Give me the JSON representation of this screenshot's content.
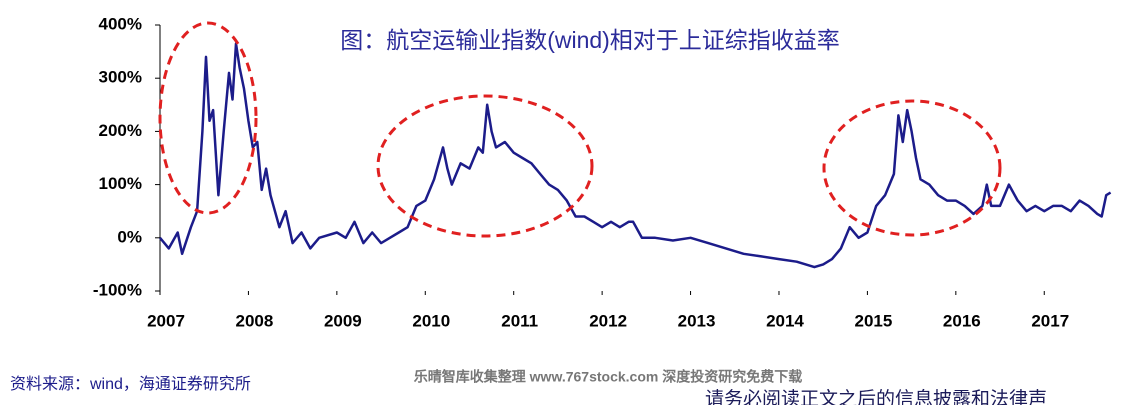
{
  "chart_data": {
    "type": "line",
    "title": "图：航空运输业指数(wind)相对于上证综指收益率",
    "source": "资料来源：wind，海通证券研究所",
    "watermark": "乐晴智库收集整理 www.767stock.com 深度投资研究免费下载",
    "footer": "请务必阅读正文之后的信息披露和法律声",
    "x": [
      2007.0,
      2007.1,
      2007.2,
      2007.25,
      2007.35,
      2007.42,
      2007.48,
      2007.52,
      2007.56,
      2007.6,
      2007.66,
      2007.72,
      2007.78,
      2007.82,
      2007.86,
      2007.9,
      2007.95,
      2008.0,
      2008.05,
      2008.1,
      2008.15,
      2008.2,
      2008.25,
      2008.35,
      2008.42,
      2008.5,
      2008.6,
      2008.7,
      2008.8,
      2009.0,
      2009.1,
      2009.2,
      2009.3,
      2009.4,
      2009.5,
      2009.6,
      2009.7,
      2009.8,
      2009.9,
      2010.0,
      2010.1,
      2010.2,
      2010.25,
      2010.3,
      2010.4,
      2010.5,
      2010.6,
      2010.65,
      2010.7,
      2010.75,
      2010.8,
      2010.9,
      2011.0,
      2011.1,
      2011.2,
      2011.3,
      2011.4,
      2011.5,
      2011.6,
      2011.7,
      2011.8,
      2011.9,
      2012.0,
      2012.1,
      2012.2,
      2012.3,
      2012.35,
      2012.45,
      2012.6,
      2012.8,
      2013.0,
      2013.2,
      2013.4,
      2013.6,
      2013.8,
      2014.0,
      2014.2,
      2014.4,
      2014.5,
      2014.6,
      2014.7,
      2014.8,
      2014.9,
      2015.0,
      2015.1,
      2015.2,
      2015.3,
      2015.35,
      2015.4,
      2015.45,
      2015.5,
      2015.55,
      2015.6,
      2015.7,
      2015.8,
      2015.9,
      2016.0,
      2016.1,
      2016.2,
      2016.3,
      2016.35,
      2016.4,
      2016.5,
      2016.6,
      2016.7,
      2016.8,
      2016.9,
      2017.0,
      2017.1,
      2017.2,
      2017.3,
      2017.4,
      2017.5,
      2017.6,
      2017.65,
      2017.7,
      2017.75
    ],
    "series": [
      {
        "color": "#1c1c8a",
        "values": [
          0,
          -20,
          10,
          -30,
          20,
          50,
          200,
          340,
          220,
          240,
          80,
          200,
          310,
          260,
          365,
          320,
          280,
          220,
          170,
          180,
          90,
          130,
          80,
          20,
          50,
          -10,
          10,
          -20,
          0,
          10,
          0,
          30,
          -10,
          10,
          -10,
          0,
          10,
          20,
          60,
          70,
          110,
          170,
          130,
          100,
          140,
          130,
          170,
          160,
          250,
          200,
          170,
          180,
          160,
          150,
          140,
          120,
          100,
          90,
          70,
          40,
          40,
          30,
          20,
          30,
          20,
          30,
          30,
          0,
          0,
          -5,
          0,
          -10,
          -20,
          -30,
          -35,
          -40,
          -45,
          -55,
          -50,
          -40,
          -20,
          20,
          0,
          10,
          60,
          80,
          120,
          230,
          180,
          240,
          200,
          150,
          110,
          100,
          80,
          70,
          70,
          60,
          45,
          60,
          100,
          60,
          60,
          100,
          70,
          50,
          60,
          50,
          60,
          60,
          50,
          70,
          60,
          45,
          40,
          80,
          85
        ]
      }
    ],
    "xlim": [
      2007,
      2017.8
    ],
    "xticks": [
      2007,
      2008,
      2009,
      2010,
      2011,
      2012,
      2013,
      2014,
      2015,
      2016,
      2017
    ],
    "ylim": [
      -100,
      400
    ],
    "yticks": [
      {
        "value": -100,
        "label": "-100%"
      },
      {
        "value": 0,
        "label": "0%"
      },
      {
        "value": 100,
        "label": "100%"
      },
      {
        "value": 200,
        "label": "200%"
      },
      {
        "value": 300,
        "label": "300%"
      },
      {
        "value": 400,
        "label": "400%"
      }
    ]
  }
}
